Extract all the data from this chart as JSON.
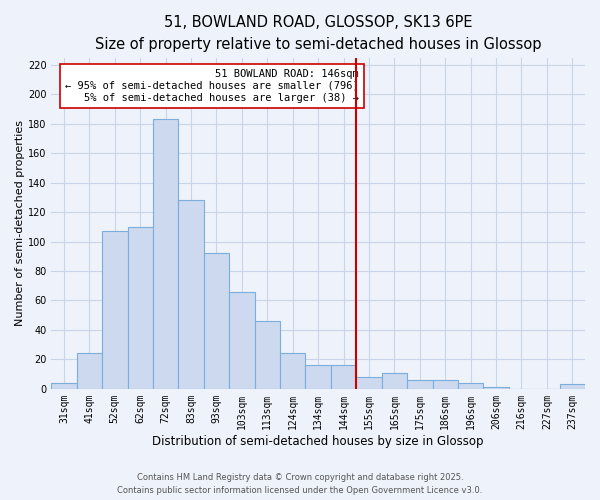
{
  "title": "51, BOWLAND ROAD, GLOSSOP, SK13 6PE",
  "subtitle": "Size of property relative to semi-detached houses in Glossop",
  "xlabel": "Distribution of semi-detached houses by size in Glossop",
  "ylabel": "Number of semi-detached properties",
  "bar_labels": [
    "31sqm",
    "41sqm",
    "52sqm",
    "62sqm",
    "72sqm",
    "83sqm",
    "93sqm",
    "103sqm",
    "113sqm",
    "124sqm",
    "134sqm",
    "144sqm",
    "155sqm",
    "165sqm",
    "175sqm",
    "186sqm",
    "196sqm",
    "206sqm",
    "216sqm",
    "227sqm",
    "237sqm"
  ],
  "bar_values": [
    4,
    24,
    107,
    110,
    183,
    128,
    92,
    66,
    46,
    24,
    16,
    16,
    8,
    11,
    6,
    6,
    4,
    1,
    0,
    0,
    3
  ],
  "bar_color": "#ccd9ee",
  "bar_edge_color": "#7aaedc",
  "vline_color": "#cc0000",
  "annotation_title": "51 BOWLAND ROAD: 146sqm",
  "annotation_line1": "← 95% of semi-detached houses are smaller (796)",
  "annotation_line2": "5% of semi-detached houses are larger (38) →",
  "ylim": [
    0,
    225
  ],
  "yticks": [
    0,
    20,
    40,
    60,
    80,
    100,
    120,
    140,
    160,
    180,
    200,
    220
  ],
  "background_color": "#eef2fa",
  "grid_color": "#c8d4e8",
  "footnote1": "Contains HM Land Registry data © Crown copyright and database right 2025.",
  "footnote2": "Contains public sector information licensed under the Open Government Licence v3.0.",
  "title_fontsize": 10.5,
  "subtitle_fontsize": 9,
  "xlabel_fontsize": 8.5,
  "ylabel_fontsize": 8,
  "tick_fontsize": 7,
  "annotation_fontsize": 7.5,
  "footnote_fontsize": 6
}
